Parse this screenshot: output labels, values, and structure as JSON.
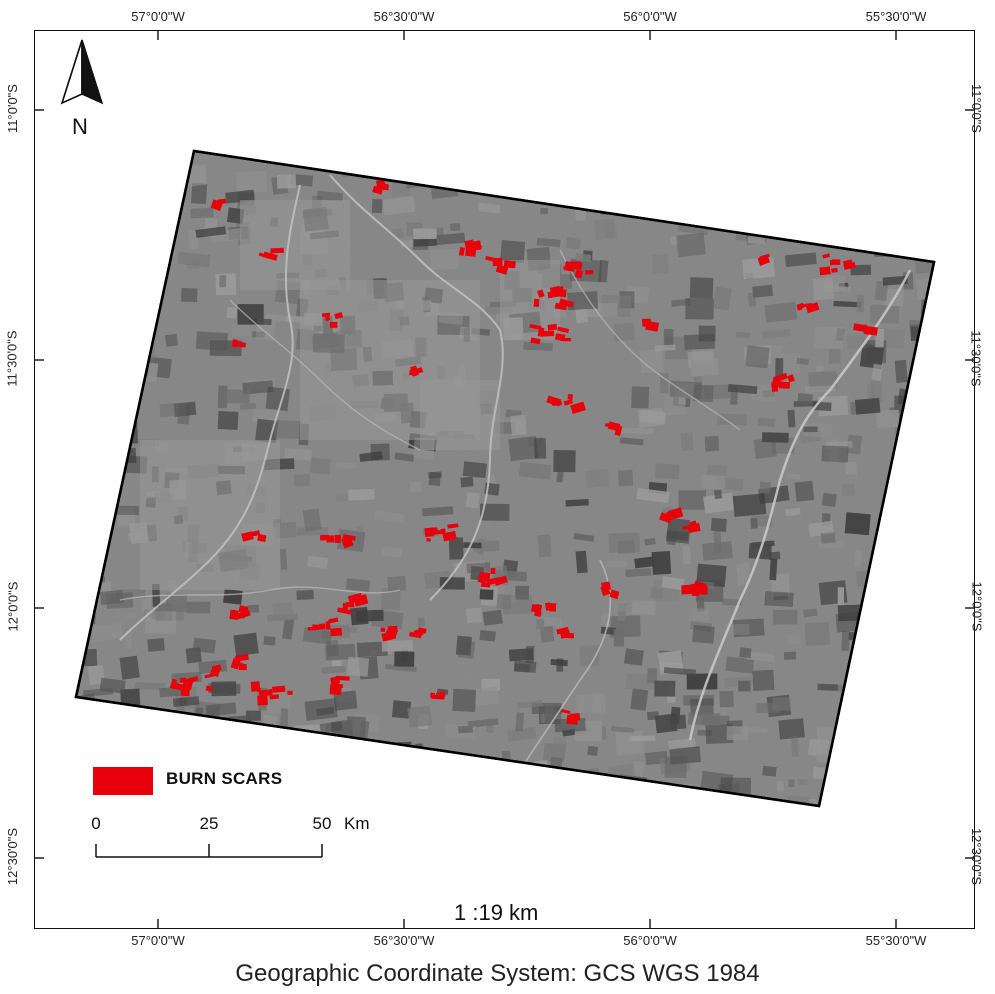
{
  "map": {
    "lon_labels": [
      "57°0'0\"W",
      "56°30'0\"W",
      "56°0'0\"W",
      "55°30'0\"W"
    ],
    "lat_labels": [
      "11°0'0\"S",
      "11°30'0\"S",
      "12°0'0\"S",
      "12°30'0\"S"
    ],
    "north_arrow_label": "N",
    "legend": {
      "label": "BURN SCARS",
      "color": "#e8000b"
    },
    "scale_bar": {
      "ticks": [
        "0",
        "25",
        "50"
      ],
      "unit": "Km"
    },
    "scale_ratio": "1 :19 km",
    "caption": "Geographic Coordinate System: GCS WGS 1984",
    "colors": {
      "burn_scar": "#e8000b",
      "imagery_base": "#8c8c8c",
      "frame": "#111111"
    }
  }
}
